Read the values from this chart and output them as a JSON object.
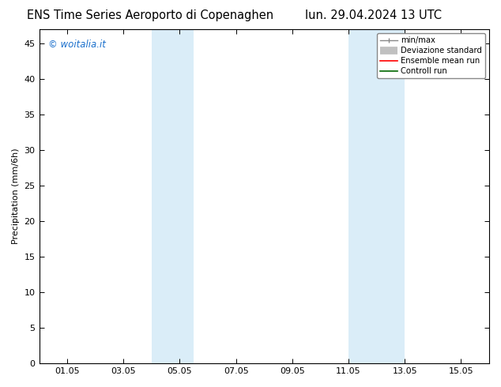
{
  "title_left": "ENS Time Series Aeroporto di Copenaghen",
  "title_right": "lun. 29.04.2024 13 UTC",
  "ylabel": "Precipitation (mm/6h)",
  "watermark": "© woitalia.it",
  "xticklabels": [
    "01.05",
    "03.05",
    "05.05",
    "07.05",
    "09.05",
    "11.05",
    "13.05",
    "15.05"
  ],
  "xtick_positions": [
    1,
    3,
    5,
    7,
    9,
    11,
    13,
    15
  ],
  "xlim": [
    0,
    16
  ],
  "ylim": [
    0,
    47
  ],
  "yticks": [
    0,
    5,
    10,
    15,
    20,
    25,
    30,
    35,
    40,
    45
  ],
  "shaded_regions": [
    {
      "xmin": 4.0,
      "xmax": 5.5,
      "color": "#daedf8"
    },
    {
      "xmin": 11.0,
      "xmax": 13.0,
      "color": "#daedf8"
    }
  ],
  "legend_labels": [
    "min/max",
    "Deviazione standard",
    "Ensemble mean run",
    "Controll run"
  ],
  "background_color": "#ffffff",
  "plot_bg_color": "#ffffff",
  "title_fontsize": 10.5,
  "tick_fontsize": 8,
  "ylabel_fontsize": 8,
  "watermark_color": "#1a6fcc",
  "watermark_fontsize": 8.5
}
